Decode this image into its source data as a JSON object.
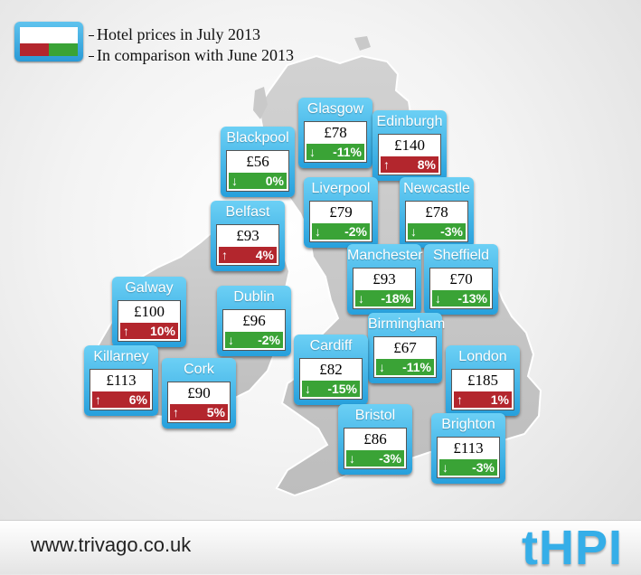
{
  "legend": {
    "line1": "Hotel prices in July 2013",
    "line2": "In comparison with June 2013",
    "colors": {
      "increase": "#b3262d",
      "decrease": "#3aa336",
      "card": "#2aa1dc"
    }
  },
  "cities": [
    {
      "name": "Glasgow",
      "price": "£78",
      "change": "-11%",
      "direction": "down"
    },
    {
      "name": "Edinburgh",
      "price": "£140",
      "change": "8%",
      "direction": "up"
    },
    {
      "name": "Blackpool",
      "price": "£56",
      "change": "0%",
      "direction": "down"
    },
    {
      "name": "Liverpool",
      "price": "£79",
      "change": "-2%",
      "direction": "down"
    },
    {
      "name": "Newcastle",
      "price": "£78",
      "change": "-3%",
      "direction": "down"
    },
    {
      "name": "Belfast",
      "price": "£93",
      "change": "4%",
      "direction": "up"
    },
    {
      "name": "Manchester",
      "price": "£93",
      "change": "-18%",
      "direction": "down"
    },
    {
      "name": "Sheffield",
      "price": "£70",
      "change": "-13%",
      "direction": "down"
    },
    {
      "name": "Galway",
      "price": "£100",
      "change": "10%",
      "direction": "up"
    },
    {
      "name": "Dublin",
      "price": "£96",
      "change": "-2%",
      "direction": "down"
    },
    {
      "name": "Birmingham",
      "price": "£67",
      "change": "-11%",
      "direction": "down"
    },
    {
      "name": "Cardiff",
      "price": "£82",
      "change": "-15%",
      "direction": "down"
    },
    {
      "name": "Killarney",
      "price": "£113",
      "change": "6%",
      "direction": "up"
    },
    {
      "name": "Cork",
      "price": "£90",
      "change": "5%",
      "direction": "up"
    },
    {
      "name": "London",
      "price": "£185",
      "change": "1%",
      "direction": "up"
    },
    {
      "name": "Bristol",
      "price": "£86",
      "change": "-3%",
      "direction": "down"
    },
    {
      "name": "Brighton",
      "price": "£113",
      "change": "-3%",
      "direction": "down"
    }
  ],
  "arrows": {
    "up": "↑",
    "down": "↓"
  },
  "footer": {
    "url": "www.trivago.co.uk",
    "logo": "tHPI"
  }
}
